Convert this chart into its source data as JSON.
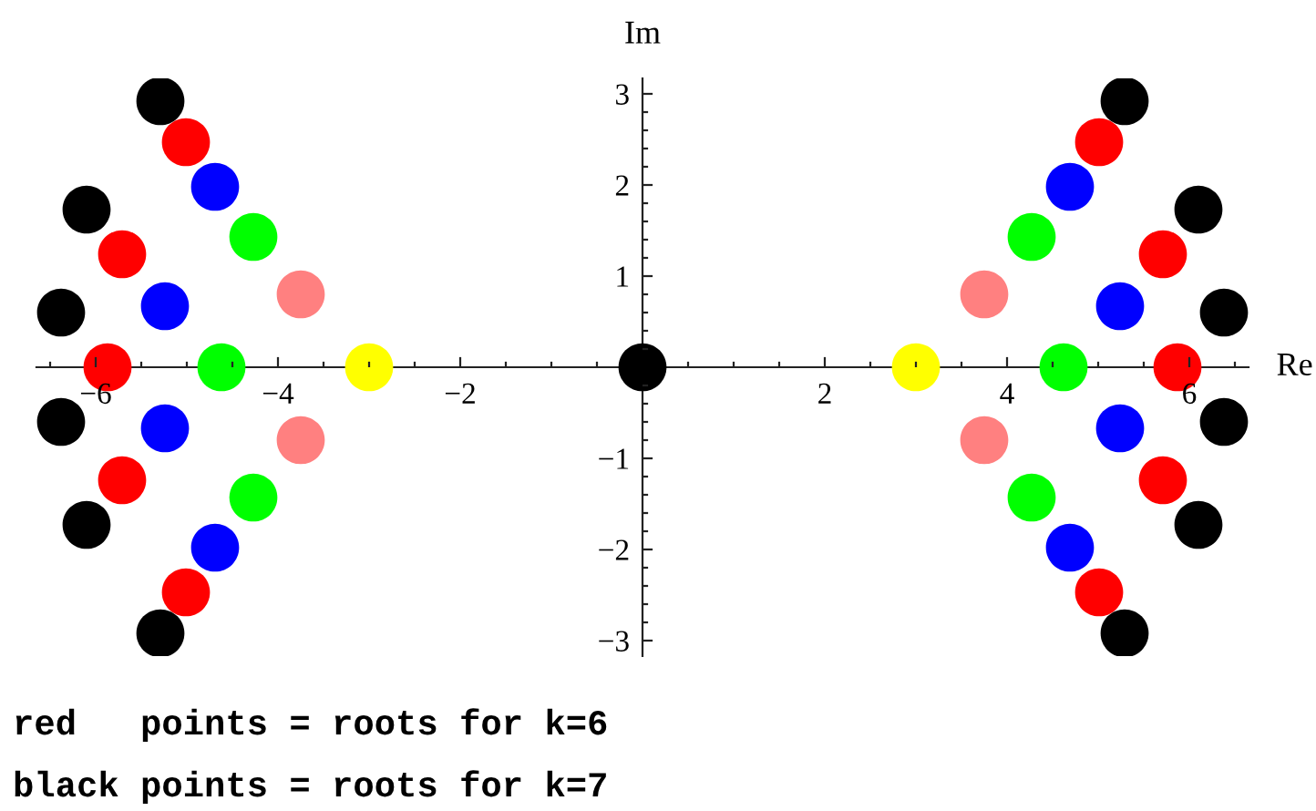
{
  "chart_data": {
    "type": "scatter",
    "xlabel": "Re",
    "ylabel": "Im",
    "annotations": [
      "red   points = roots for k=6",
      "black points = roots for k=7"
    ],
    "marker": "circle",
    "series": [
      {
        "color": "#ffff00",
        "x": [
          -3,
          3
        ],
        "values": [
          0,
          0
        ]
      },
      {
        "color": "#ff8080",
        "x": [
          -3.75,
          -3.75,
          3.75,
          3.75
        ],
        "values": [
          0.8,
          -0.8,
          0.8,
          -0.8
        ]
      },
      {
        "color": "#00ff00",
        "x": [
          -4.62,
          -4.27,
          -4.27,
          4.62,
          4.27,
          4.27
        ],
        "values": [
          0,
          1.43,
          -1.43,
          0,
          1.43,
          -1.43
        ]
      },
      {
        "color": "#0000ff",
        "x": [
          -5.24,
          -5.24,
          -4.69,
          -4.69,
          5.24,
          5.24,
          4.69,
          4.69
        ],
        "values": [
          0.67,
          -0.67,
          1.98,
          -1.98,
          0.67,
          -0.67,
          1.98,
          -1.98
        ]
      },
      {
        "color": "#ff0000",
        "x": [
          -5.87,
          -5.71,
          -5.71,
          -5.01,
          -5.01,
          5.87,
          5.71,
          5.71,
          5.01,
          5.01
        ],
        "values": [
          0,
          1.24,
          -1.24,
          2.47,
          -2.47,
          0,
          1.24,
          -1.24,
          2.47,
          -2.47
        ]
      },
      {
        "color": "#000000",
        "x": [
          0,
          -6.38,
          -6.38,
          -6.1,
          -6.1,
          -5.29,
          -5.29,
          6.38,
          6.38,
          6.1,
          6.1,
          5.29,
          5.29
        ],
        "values": [
          0,
          0.6,
          -0.6,
          1.73,
          -1.73,
          2.92,
          -2.92,
          0.6,
          -0.6,
          1.73,
          -1.73,
          2.92,
          -2.92
        ]
      }
    ],
    "xlim": [
      -6.65,
      6.65
    ],
    "ylim": [
      -3.17,
      3.17
    ],
    "xticks": [
      {
        "value": -6.5,
        "label": null
      },
      {
        "value": -6,
        "label": "−6"
      },
      {
        "value": -5.5,
        "label": null
      },
      {
        "value": -5,
        "label": null
      },
      {
        "value": -4.5,
        "label": null
      },
      {
        "value": -4,
        "label": "−4"
      },
      {
        "value": -3.5,
        "label": null
      },
      {
        "value": -3,
        "label": null
      },
      {
        "value": -2.5,
        "label": null
      },
      {
        "value": -2,
        "label": "−2"
      },
      {
        "value": -1.5,
        "label": null
      },
      {
        "value": -1,
        "label": null
      },
      {
        "value": -0.5,
        "label": null
      },
      {
        "value": 0.5,
        "label": null
      },
      {
        "value": 1,
        "label": null
      },
      {
        "value": 1.5,
        "label": null
      },
      2,
      {
        "value": 2.5,
        "label": null
      },
      {
        "value": 3,
        "label": null
      },
      {
        "value": 3.5,
        "label": null
      },
      4,
      {
        "value": 4.5,
        "label": null
      },
      {
        "value": 5,
        "label": null
      },
      {
        "value": 5.5,
        "label": null
      },
      6,
      {
        "value": 6.5,
        "label": null
      }
    ],
    "yticks": [
      {
        "value": -3,
        "label": "−3"
      },
      {
        "value": -2.8,
        "label": null
      },
      {
        "value": -2.6,
        "label": null
      },
      {
        "value": -2.4,
        "label": null
      },
      {
        "value": -2.2,
        "label": null
      },
      {
        "value": -2,
        "label": "−2"
      },
      {
        "value": -1.8,
        "label": null
      },
      {
        "value": -1.6,
        "label": null
      },
      {
        "value": -1.4,
        "label": null
      },
      {
        "value": -1.2,
        "label": null
      },
      {
        "value": -1,
        "label": "−1"
      },
      {
        "value": -0.8,
        "label": null
      },
      {
        "value": -0.6,
        "label": null
      },
      {
        "value": -0.4,
        "label": null
      },
      {
        "value": -0.2,
        "label": null
      },
      {
        "value": 0.2,
        "label": null
      },
      {
        "value": 0.4,
        "label": null
      },
      {
        "value": 0.6,
        "label": null
      },
      {
        "value": 0.8,
        "label": null
      },
      1,
      {
        "value": 1.2,
        "label": null
      },
      {
        "value": 1.4,
        "label": null
      },
      {
        "value": 1.6,
        "label": null
      },
      {
        "value": 1.8,
        "label": null
      },
      2,
      {
        "value": 2.2,
        "label": null
      },
      {
        "value": 2.4,
        "label": null
      },
      {
        "value": 2.6,
        "label": null
      },
      {
        "value": 2.8,
        "label": null
      },
      3
    ]
  }
}
